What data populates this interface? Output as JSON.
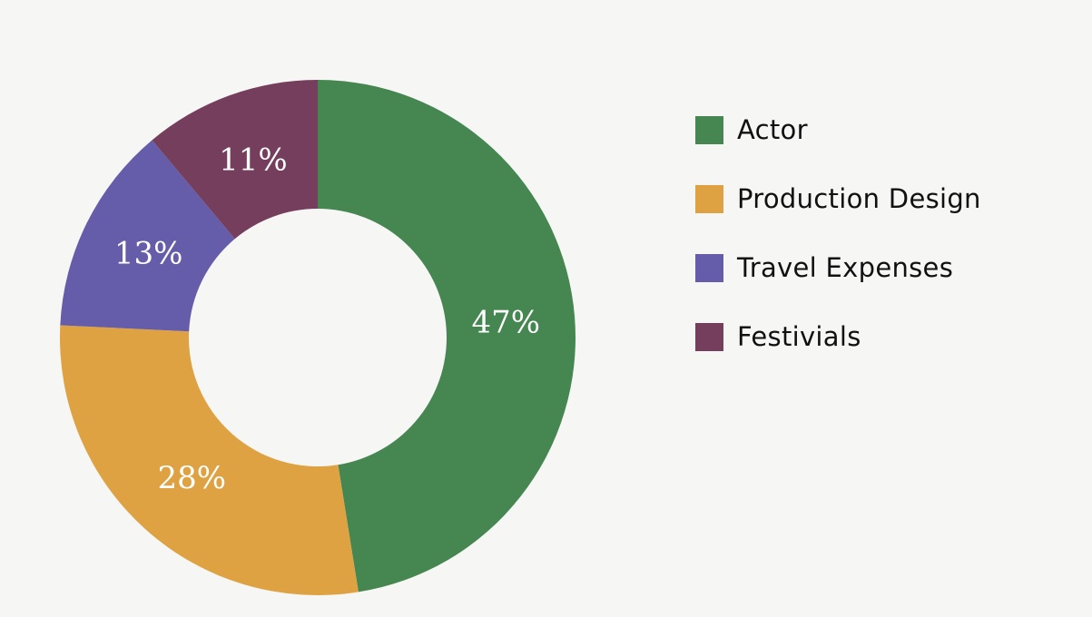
{
  "chart_data": {
    "type": "pie",
    "title": "",
    "categories": [
      "Actor",
      "Production Design",
      "Travel Expenses",
      "Festivials"
    ],
    "values": [
      47,
      28,
      13,
      11
    ],
    "labels": [
      "47%",
      "28%",
      "13%",
      "11%"
    ],
    "colors": [
      "#458651",
      "#dea243",
      "#655da9",
      "#753e5d"
    ],
    "donut": true,
    "legend": {
      "position": "right",
      "items": [
        {
          "label": "Actor",
          "color": "#458651"
        },
        {
          "label": "Production Design",
          "color": "#dea243"
        },
        {
          "label": "Travel Expenses",
          "color": "#655da9"
        },
        {
          "label": "Festivials",
          "color": "#753e5d"
        }
      ]
    }
  }
}
